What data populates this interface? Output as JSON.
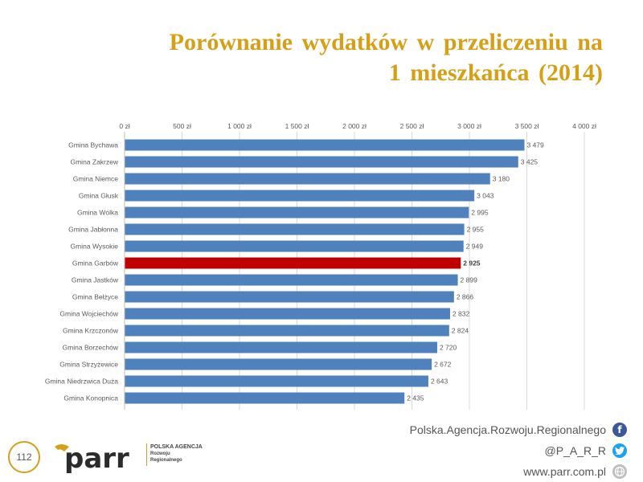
{
  "header": {
    "title_line1": "Porównanie wydatków w przeliczeniu na",
    "title_line2": "1 mieszkańca (2014)"
  },
  "chart_data": {
    "type": "bar",
    "orientation": "horizontal",
    "categories": [
      "Gmina Bychawa",
      "Gmina Zakrzew",
      "Gmina Niemce",
      "Gmina Głusk",
      "Gmina Wólka",
      "Gmina Jabłonna",
      "Gmina Wysokie",
      "Gmina Garbów",
      "Gmina Jastków",
      "Gmina Bełżyce",
      "Gmina Wojciechów",
      "Gmina Krzczonów",
      "Gmina Borzechów",
      "Gmina Strzyżewice",
      "Gmina Niedrzwica Duża",
      "Gmina Konopnica"
    ],
    "values": [
      3479,
      3425,
      3180,
      3043,
      2995,
      2955,
      2949,
      2925,
      2899,
      2866,
      2832,
      2824,
      2720,
      2672,
      2643,
      2435
    ],
    "value_labels": [
      "3 479",
      "3 425",
      "3 180",
      "3 043",
      "2 995",
      "2 955",
      "2 949",
      "2 925",
      "2 899",
      "2 866",
      "2 832",
      "2 824",
      "2 720",
      "2 672",
      "2 643",
      "2 435"
    ],
    "highlight_category": "Gmina Garbów",
    "xlim": [
      0,
      4000
    ],
    "x_ticks": [
      0,
      500,
      1000,
      1500,
      2000,
      2500,
      3000,
      3500,
      4000
    ],
    "x_tick_labels": [
      "0 zł",
      "500 zł",
      "1 000 zł",
      "1 500 zł",
      "2 000 zł",
      "2 500 zł",
      "3 000 zł",
      "3 500 zł",
      "4 000 zł"
    ],
    "x_axis_position": "top",
    "grid": true,
    "colors": {
      "bar": "#4f81bd",
      "highlight": "#c00000",
      "grid": "#d9d9d9"
    }
  },
  "footer": {
    "page_number": "112",
    "logo_word": "parr",
    "logo_line1": "POLSKA AGENCJA",
    "logo_line2": "Rozwoju",
    "logo_line3": "Regionalnego",
    "agency_link": "Polska.Agencja.Rozwoju.Regionalnego",
    "twitter_handle": "@P_A_R_R",
    "website": "www.parr.com.pl",
    "icons": [
      "facebook-icon",
      "twitter-icon",
      "globe-icon"
    ],
    "colors": {
      "accent": "#d4a017",
      "facebook": "#3b5998",
      "twitter": "#1da1f2",
      "globe": "#bfbfbf"
    }
  }
}
